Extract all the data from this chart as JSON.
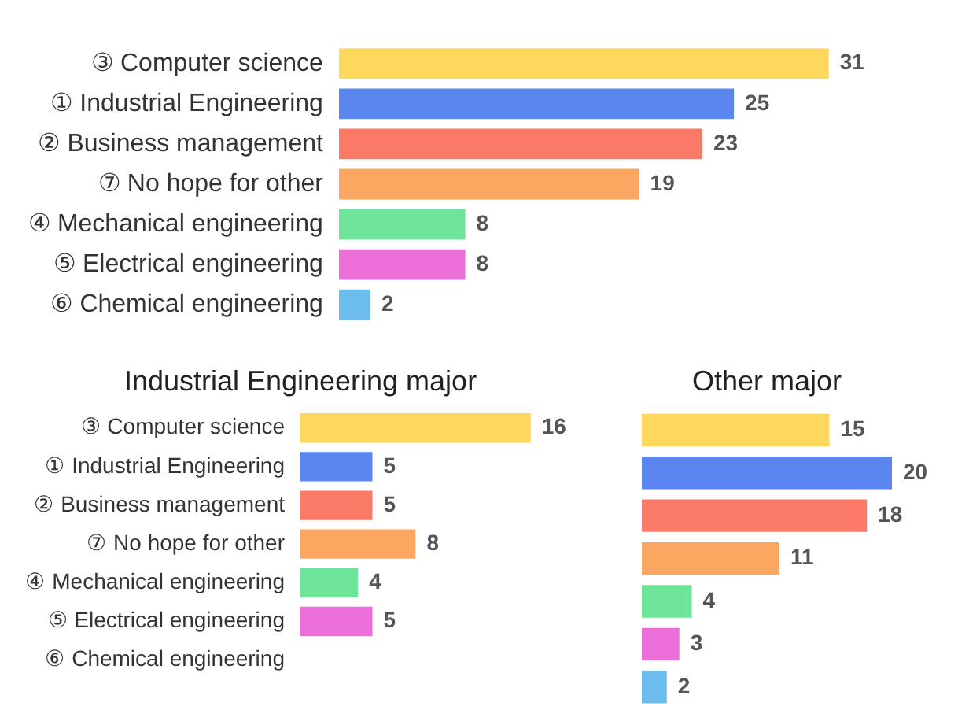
{
  "chart_data": [
    {
      "type": "bar",
      "orientation": "horizontal",
      "categories": [
        "③ Computer science",
        "① Industrial Engineering",
        "② Business management",
        "⑦ No hope for other",
        "④ Mechanical engineering",
        "⑤ Electrical engineering",
        "⑥ Chemical engineering"
      ],
      "values": [
        31,
        25,
        23,
        19,
        8,
        8,
        2
      ],
      "colors": [
        "#fdd85d",
        "#5b86f0",
        "#fb7a67",
        "#fba661",
        "#6ee39a",
        "#ec6fd9",
        "#6cbcee"
      ],
      "data_labels": true,
      "grid": false,
      "legend": false,
      "tick_labels": "y"
    },
    {
      "type": "bar",
      "orientation": "horizontal",
      "title": "Industrial Engineering major",
      "categories": [
        "③ Computer science",
        "① Industrial Engineering",
        "② Business management",
        "⑦ No hope for other",
        "④ Mechanical engineering",
        "⑤ Electrical engineering",
        "⑥ Chemical engineering"
      ],
      "values": [
        16,
        5,
        5,
        8,
        4,
        5,
        null
      ],
      "colors": [
        "#fdd85d",
        "#5b86f0",
        "#fb7a67",
        "#fba661",
        "#6ee39a",
        "#ec6fd9",
        "#6cbcee"
      ],
      "data_labels": true,
      "grid": false,
      "legend": false,
      "tick_labels": "y"
    },
    {
      "type": "bar",
      "orientation": "horizontal",
      "title": "Other major",
      "categories": [
        null,
        null,
        null,
        null,
        null,
        null,
        null
      ],
      "values": [
        15,
        20,
        18,
        11,
        4,
        3,
        2
      ],
      "colors": [
        "#fdd85d",
        "#5b86f0",
        "#fb7a67",
        "#fba661",
        "#6ee39a",
        "#ec6fd9",
        "#6cbcee"
      ],
      "data_labels": true,
      "grid": false,
      "legend": false,
      "tick_labels": false
    }
  ]
}
